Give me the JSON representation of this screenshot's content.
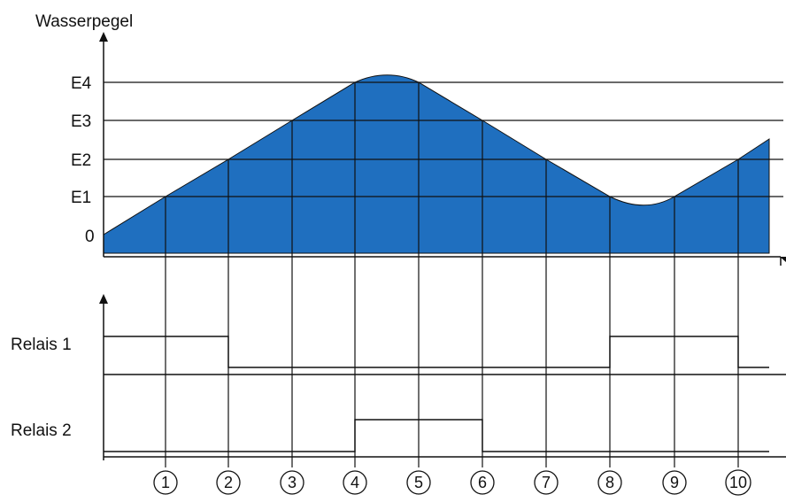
{
  "title": "Wasserpegel",
  "levels": [
    {
      "key": "e4",
      "label": "E4"
    },
    {
      "key": "e3",
      "label": "E3"
    },
    {
      "key": "e2",
      "label": "E2"
    },
    {
      "key": "e1",
      "label": "E1"
    },
    {
      "key": "zero",
      "label": "0"
    }
  ],
  "relays": [
    {
      "key": "relais-1",
      "label": "Relais 1"
    },
    {
      "key": "relais-2",
      "label": "Relais 2"
    }
  ],
  "markers": [
    "1",
    "2",
    "3",
    "4",
    "5",
    "6",
    "7",
    "8",
    "9",
    "10"
  ],
  "colors": {
    "fill": "#1f6fbf",
    "line": "#111111",
    "background": "#ffffff"
  }
}
